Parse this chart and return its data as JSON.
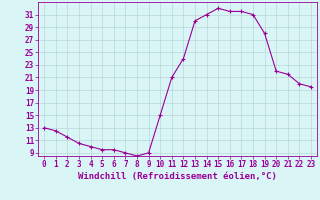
{
  "x": [
    0,
    1,
    2,
    3,
    4,
    5,
    6,
    7,
    8,
    9,
    10,
    11,
    12,
    13,
    14,
    15,
    16,
    17,
    18,
    19,
    20,
    21,
    22,
    23
  ],
  "y": [
    13,
    12.5,
    11.5,
    10.5,
    10,
    9.5,
    9.5,
    9,
    8.5,
    9,
    15,
    21,
    24,
    30,
    31,
    32,
    31.5,
    31.5,
    31,
    28,
    22,
    21.5,
    20,
    19.5
  ],
  "line_color": "#990099",
  "marker": "+",
  "marker_size": 3,
  "background_color": "#d9f5f5",
  "grid_color": "#b8d8d8",
  "xlabel": "Windchill (Refroidissement éolien,°C)",
  "ylabel_ticks": [
    9,
    11,
    13,
    15,
    17,
    19,
    21,
    23,
    25,
    27,
    29,
    31
  ],
  "xlim": [
    -0.5,
    23.5
  ],
  "ylim": [
    8.5,
    33
  ],
  "xtick_labels": [
    "0",
    "1",
    "2",
    "3",
    "4",
    "5",
    "6",
    "7",
    "8",
    "9",
    "10",
    "11",
    "12",
    "13",
    "14",
    "15",
    "16",
    "17",
    "18",
    "19",
    "20",
    "21",
    "22",
    "23"
  ],
  "tick_fontsize": 5.5,
  "xlabel_fontsize": 6.5
}
